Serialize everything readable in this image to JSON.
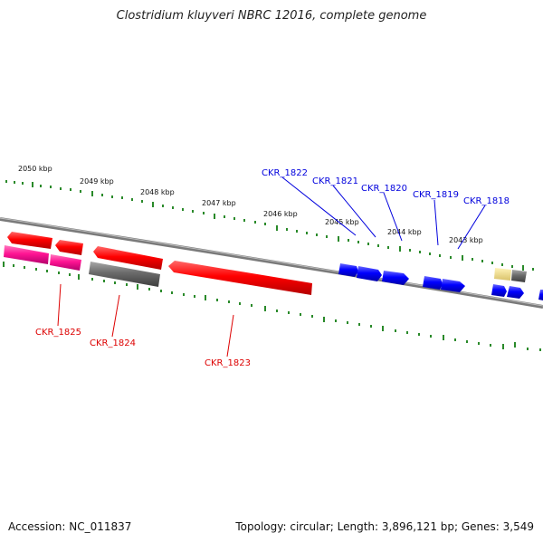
{
  "title": "Clostridium kluyveri NBRC 12016, complete genome",
  "footer": {
    "accession": "Accession: NC_011837",
    "summary": "Topology: circular; Length: 3,896,121 bp; Genes: 3,549"
  },
  "scale_labels": [
    "2050 kbp",
    "2049 kbp",
    "2048 kbp",
    "2047 kbp",
    "2046 kbp",
    "2045 kbp",
    "2044 kbp",
    "2043 kbp"
  ],
  "gene_labels": {
    "top": [
      "CKR_1822",
      "CKR_1821",
      "CKR_1820",
      "CKR_1819",
      "CKR_1818"
    ],
    "bottom": [
      "CKR_1825",
      "CKR_1824",
      "CKR_1823"
    ]
  },
  "colors": {
    "red": "#ff0000",
    "magenta": "#ff1493",
    "gray": "#666666",
    "blue": "#0000ff",
    "khaki": "#eedd88",
    "tick_green": "#2a8a2a",
    "label_top": "#0000dd",
    "label_bottom": "#dd0000"
  }
}
